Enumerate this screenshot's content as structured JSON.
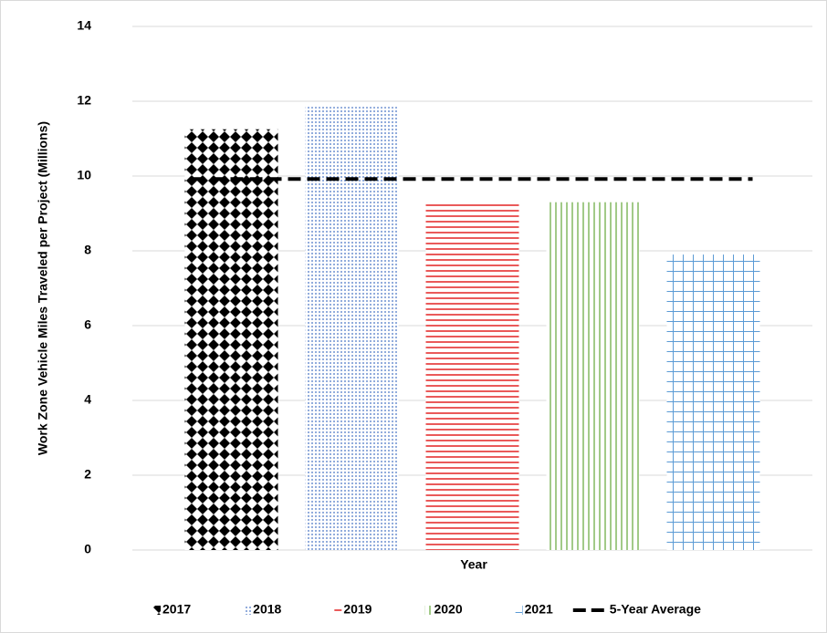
{
  "chart_data": {
    "type": "bar",
    "y_label": "Work Zone Vehicle Miles Traveled per Project (Millions)",
    "x_label": "Year",
    "categories": [
      null
    ],
    "series": [
      {
        "name": "2017",
        "color": "#000000",
        "pattern": "diamond",
        "values": [
          11.25
        ]
      },
      {
        "name": "2018",
        "color": "#4472c4",
        "pattern": "dots",
        "values": [
          11.85
        ]
      },
      {
        "name": "2019",
        "color": "#e00000",
        "pattern": "hlines",
        "values": [
          9.3
        ]
      },
      {
        "name": "2020",
        "color": "#70ad47",
        "pattern": "vlines",
        "values": [
          9.3
        ]
      },
      {
        "name": "2021",
        "color": "#5b9bd5",
        "pattern": "grid",
        "values": [
          7.9
        ]
      }
    ],
    "average": {
      "name": "5-Year Average",
      "value": 9.92,
      "color": "#000000",
      "dashed": true
    },
    "ylim": [
      0,
      14
    ],
    "yticks": [
      0,
      2,
      4,
      6,
      8,
      10,
      12,
      14
    ],
    "grid": true,
    "legend": "bottom"
  }
}
